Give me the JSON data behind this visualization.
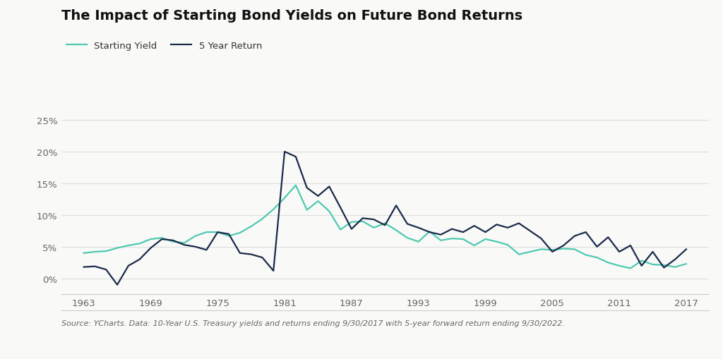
{
  "title": "The Impact of Starting Bond Yields on Future Bond Returns",
  "legend": [
    "Starting Yield",
    "5 Year Return"
  ],
  "source_text": "Source: YCharts. Data: 10-Year U.S. Treasury yields and returns ending 9/30/2017 with 5-year forward return ending 9/30/2022.",
  "starting_yield_color": "#4ec9b0",
  "return_color": "#1a2a4a",
  "background_color": "#f9f9f7",
  "ylim": [
    -0.025,
    0.27
  ],
  "yticks": [
    0.0,
    0.05,
    0.1,
    0.15,
    0.2,
    0.25
  ],
  "xticks": [
    1963,
    1969,
    1975,
    1981,
    1987,
    1993,
    1999,
    2005,
    2011,
    2017
  ],
  "years": [
    1963,
    1964,
    1965,
    1966,
    1967,
    1968,
    1969,
    1970,
    1971,
    1972,
    1973,
    1974,
    1975,
    1976,
    1977,
    1978,
    1979,
    1980,
    1981,
    1982,
    1983,
    1984,
    1985,
    1986,
    1987,
    1988,
    1989,
    1990,
    1991,
    1992,
    1993,
    1994,
    1995,
    1996,
    1997,
    1998,
    1999,
    2000,
    2001,
    2002,
    2003,
    2004,
    2005,
    2006,
    2007,
    2008,
    2009,
    2010,
    2011,
    2012,
    2013,
    2014,
    2015,
    2016,
    2017
  ],
  "starting_yield": [
    0.04,
    0.042,
    0.043,
    0.048,
    0.052,
    0.055,
    0.062,
    0.064,
    0.058,
    0.056,
    0.067,
    0.073,
    0.073,
    0.067,
    0.072,
    0.082,
    0.094,
    0.109,
    0.127,
    0.147,
    0.108,
    0.122,
    0.106,
    0.077,
    0.089,
    0.09,
    0.08,
    0.087,
    0.076,
    0.064,
    0.058,
    0.074,
    0.06,
    0.063,
    0.062,
    0.052,
    0.062,
    0.058,
    0.053,
    0.038,
    0.042,
    0.046,
    0.045,
    0.047,
    0.046,
    0.037,
    0.033,
    0.025,
    0.02,
    0.016,
    0.028,
    0.022,
    0.021,
    0.018,
    0.023
  ],
  "five_year_return": [
    0.018,
    0.019,
    0.014,
    -0.01,
    0.02,
    0.03,
    0.048,
    0.062,
    0.06,
    0.053,
    0.05,
    0.045,
    0.073,
    0.07,
    0.04,
    0.038,
    0.033,
    0.012,
    0.2,
    0.192,
    0.143,
    0.13,
    0.145,
    0.112,
    0.078,
    0.095,
    0.093,
    0.084,
    0.115,
    0.086,
    0.08,
    0.073,
    0.069,
    0.078,
    0.073,
    0.083,
    0.073,
    0.085,
    0.08,
    0.087,
    0.075,
    0.063,
    0.042,
    0.052,
    0.067,
    0.073,
    0.05,
    0.065,
    0.042,
    0.052,
    0.02,
    0.042,
    0.017,
    0.03,
    0.046
  ]
}
